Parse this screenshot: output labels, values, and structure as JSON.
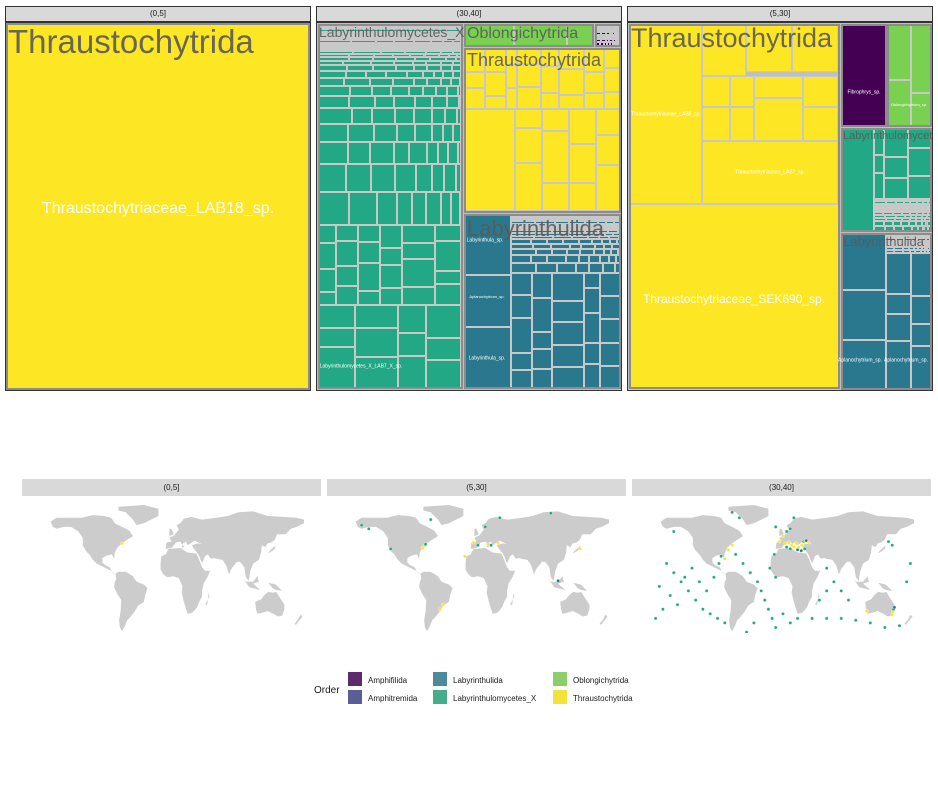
{
  "legend": {
    "title": "Order",
    "items": [
      {
        "label": "Amphifilida",
        "color": "#5d2a6e"
      },
      {
        "label": "Amphitremida",
        "color": "#5b5d96"
      },
      {
        "label": "Labyrinthulida",
        "color": "#4a8a9b"
      },
      {
        "label": "Labyrinthulomycetes_X",
        "color": "#46ad8b"
      },
      {
        "label": "Oblongichytrida",
        "color": "#8ccf6a"
      },
      {
        "label": "Thraustochytrida",
        "color": "#f2e33c"
      }
    ]
  },
  "treemap_colors": {
    "Thraustochytrida": "#fde725",
    "Labyrinthulomycetes_X": "#22a884",
    "Labyrinthulida": "#2a788e",
    "Oblongichytrida": "#7ad151",
    "Amphifilida": "#440154",
    "border": "#c8c8c8"
  },
  "map_colors": {
    "land": "#cccccc",
    "strip": "#d9d9d9"
  },
  "chart_data": [
    {
      "type": "treemap",
      "panel": "(0,5]",
      "groups": [
        {
          "order": "Thraustochytrida",
          "leaves": [
            "Thraustochytriaceae_LAB18_sp."
          ]
        }
      ]
    },
    {
      "type": "treemap",
      "panel": "(30,40]",
      "groups": [
        {
          "order": "Labyrinthulomycetes_X",
          "leaves": [
            "Labyrinthulomycetes_X_LAB7_X_sp."
          ]
        },
        {
          "order": "Oblongichytrida",
          "leaves": []
        },
        {
          "order": "Amphifilida",
          "leaves": []
        },
        {
          "order": "Thraustochytrida",
          "leaves": []
        },
        {
          "order": "Labyrinthulida",
          "leaves": [
            "Labyrinthula_sp.",
            "Aplanochytrium_sp.",
            "Labyrinthula_sp."
          ]
        }
      ]
    },
    {
      "type": "treemap",
      "panel": "(5,30]",
      "groups": [
        {
          "order": "Thraustochytrida",
          "leaves": [
            "Thraustochytriaceae_LAB8_sp.",
            "Thraustochytriaceae_LAB7_sp.",
            "Thraustochytriaceae_SEK690_sp."
          ]
        },
        {
          "order": "Amphifilida",
          "leaves": [
            "Fibrophrys_sp."
          ]
        },
        {
          "order": "Oblongichytrida",
          "leaves": [
            "Oblongichytrium_sp."
          ]
        },
        {
          "order": "Labyrinthulomycetes_X",
          "leaves": []
        },
        {
          "order": "Labyrinthulida",
          "leaves": [
            "Aplanochytrium_sp.",
            "Aplanochytrium_sp."
          ]
        }
      ]
    },
    {
      "type": "map",
      "panel": "(0,5]",
      "points": [
        {
          "lon": -70,
          "lat": 42,
          "order": "Thraustochytrida"
        }
      ]
    },
    {
      "type": "map",
      "panel": "(5,30]",
      "points": [
        {
          "lon": -74,
          "lat": 39,
          "order": "Thraustochytrida"
        },
        {
          "lon": -76,
          "lat": 37,
          "order": "Thraustochytrida"
        },
        {
          "lon": -72,
          "lat": 41,
          "order": "Labyrinthulomycetes_X"
        },
        {
          "lon": -120,
          "lat": 36,
          "order": "Labyrinthulomycetes_X"
        },
        {
          "lon": -150,
          "lat": 58,
          "order": "Labyrinthulomycetes_X"
        },
        {
          "lon": -65,
          "lat": 68,
          "order": "Labyrinthulomycetes_X"
        },
        {
          "lon": -6,
          "lat": 43,
          "order": "Thraustochytrida"
        },
        {
          "lon": 0,
          "lat": 40,
          "order": "Labyrinthulomycetes_X"
        },
        {
          "lon": 14,
          "lat": 41,
          "order": "Thraustochytrida"
        },
        {
          "lon": 18,
          "lat": 40,
          "order": "Labyrinthulomycetes_X"
        },
        {
          "lon": 28,
          "lat": 42,
          "order": "Thraustochytrida"
        },
        {
          "lon": 10,
          "lat": 60,
          "order": "Labyrinthulomycetes_X"
        },
        {
          "lon": 30,
          "lat": 70,
          "order": "Labyrinthulomycetes_X"
        },
        {
          "lon": -18,
          "lat": 28,
          "order": "Thraustochytrida"
        },
        {
          "lon": 100,
          "lat": 75,
          "order": "Labyrinthulomycetes_X"
        },
        {
          "lon": 140,
          "lat": 36,
          "order": "Thraustochytrida"
        },
        {
          "lon": 110,
          "lat": 1,
          "order": "Labyrinthulida"
        },
        {
          "lon": -48,
          "lat": -25,
          "order": "Thraustochytrida"
        },
        {
          "lon": -52,
          "lat": -30,
          "order": "Thraustochytrida"
        },
        {
          "lon": -160,
          "lat": 62,
          "order": "Labyrinthulomycetes_X"
        }
      ]
    },
    {
      "type": "map",
      "panel": "(30,40]",
      "points": [
        {
          "lon": -160,
          "lat": 20,
          "order": "Labyrinthulomycetes_X"
        },
        {
          "lon": -150,
          "lat": 10,
          "order": "Labyrinthulomycetes_X"
        },
        {
          "lon": -140,
          "lat": 0,
          "order": "Labyrinthulomycetes_X"
        },
        {
          "lon": -130,
          "lat": -10,
          "order": "Labyrinthulomycetes_X"
        },
        {
          "lon": -120,
          "lat": -20,
          "order": "Labyrinthulomycetes_X"
        },
        {
          "lon": -110,
          "lat": -30,
          "order": "Labyrinthulomycetes_X"
        },
        {
          "lon": -100,
          "lat": -35,
          "order": "Labyrinthulomycetes_X"
        },
        {
          "lon": -90,
          "lat": -40,
          "order": "Labyrinthulomycetes_X"
        },
        {
          "lon": -80,
          "lat": -45,
          "order": "Labyrinthulomycetes_X"
        },
        {
          "lon": -170,
          "lat": -5,
          "order": "Labyrinthulomycetes_X"
        },
        {
          "lon": -155,
          "lat": -15,
          "order": "Labyrinthulomycetes_X"
        },
        {
          "lon": -145,
          "lat": -25,
          "order": "Labyrinthulomycetes_X"
        },
        {
          "lon": -135,
          "lat": 5,
          "order": "Labyrinthulomycetes_X"
        },
        {
          "lon": -125,
          "lat": 15,
          "order": "Labyrinthulomycetes_X"
        },
        {
          "lon": -115,
          "lat": 0,
          "order": "Labyrinthulomycetes_X"
        },
        {
          "lon": -105,
          "lat": -10,
          "order": "Labyrinthulomycetes_X"
        },
        {
          "lon": -95,
          "lat": 5,
          "order": "Labyrinthulomycetes_X"
        },
        {
          "lon": -88,
          "lat": 20,
          "order": "Labyrinthulomycetes_X"
        },
        {
          "lon": -175,
          "lat": -40,
          "order": "Labyrinthulomycetes_X"
        },
        {
          "lon": -165,
          "lat": -30,
          "order": "Labyrinthulomycetes_X"
        },
        {
          "lon": -70,
          "lat": 40,
          "order": "Thraustochytrida"
        },
        {
          "lon": -75,
          "lat": 35,
          "order": "Thraustochytrida"
        },
        {
          "lon": -65,
          "lat": 30,
          "order": "Labyrinthulomycetes_X"
        },
        {
          "lon": -55,
          "lat": 20,
          "order": "Labyrinthulomycetes_X"
        },
        {
          "lon": -45,
          "lat": 10,
          "order": "Labyrinthulomycetes_X"
        },
        {
          "lon": -35,
          "lat": 0,
          "order": "Labyrinthulomycetes_X"
        },
        {
          "lon": -30,
          "lat": -10,
          "order": "Labyrinthulomycetes_X"
        },
        {
          "lon": -25,
          "lat": -20,
          "order": "Labyrinthulomycetes_X"
        },
        {
          "lon": -20,
          "lat": -30,
          "order": "Labyrinthulomycetes_X"
        },
        {
          "lon": -15,
          "lat": -40,
          "order": "Labyrinthulomycetes_X"
        },
        {
          "lon": -10,
          "lat": -50,
          "order": "Labyrinthulomycetes_X"
        },
        {
          "lon": -40,
          "lat": -45,
          "order": "Labyrinthulomycetes_X"
        },
        {
          "lon": -50,
          "lat": -55,
          "order": "Labyrinthulomycetes_X"
        },
        {
          "lon": 0,
          "lat": -35,
          "order": "Labyrinthulomycetes_X"
        },
        {
          "lon": 10,
          "lat": -45,
          "order": "Labyrinthulomycetes_X"
        },
        {
          "lon": 20,
          "lat": -40,
          "order": "Labyrinthulomycetes_X"
        },
        {
          "lon": 40,
          "lat": -40,
          "order": "Labyrinthulomycetes_X"
        },
        {
          "lon": 60,
          "lat": -40,
          "order": "Labyrinthulomycetes_X"
        },
        {
          "lon": 80,
          "lat": -40,
          "order": "Labyrinthulomycetes_X"
        },
        {
          "lon": 100,
          "lat": -42,
          "order": "Labyrinthulomycetes_X"
        },
        {
          "lon": 120,
          "lat": -45,
          "order": "Labyrinthulomycetes_X"
        },
        {
          "lon": 140,
          "lat": -50,
          "order": "Labyrinthulomycetes_X"
        },
        {
          "lon": 160,
          "lat": -48,
          "order": "Labyrinthulomycetes_X"
        },
        {
          "lon": 50,
          "lat": -20,
          "order": "Labyrinthulomycetes_X"
        },
        {
          "lon": 60,
          "lat": -10,
          "order": "Labyrinthulomycetes_X"
        },
        {
          "lon": 70,
          "lat": 0,
          "order": "Labyrinthulomycetes_X"
        },
        {
          "lon": 80,
          "lat": -10,
          "order": "Labyrinthulomycetes_X"
        },
        {
          "lon": 90,
          "lat": -20,
          "order": "Labyrinthulomycetes_X"
        },
        {
          "lon": 60,
          "lat": 15,
          "order": "Labyrinthulomycetes_X"
        },
        {
          "lon": 170,
          "lat": 0,
          "order": "Labyrinthulomycetes_X"
        },
        {
          "lon": 175,
          "lat": 20,
          "order": "Labyrinthulomycetes_X"
        },
        {
          "lon": -5,
          "lat": 44,
          "order": "Thraustochytrida"
        },
        {
          "lon": 3,
          "lat": 42,
          "order": "Thraustochytrida"
        },
        {
          "lon": 8,
          "lat": 43,
          "order": "Thraustochytrida"
        },
        {
          "lon": 12,
          "lat": 40,
          "order": "Thraustochytrida"
        },
        {
          "lon": 15,
          "lat": 38,
          "order": "Thraustochytrida"
        },
        {
          "lon": 18,
          "lat": 42,
          "order": "Thraustochytrida"
        },
        {
          "lon": 22,
          "lat": 38,
          "order": "Thraustochytrida"
        },
        {
          "lon": 26,
          "lat": 40,
          "order": "Thraustochytrida"
        },
        {
          "lon": 30,
          "lat": 36,
          "order": "Labyrinthulomycetes_X"
        },
        {
          "lon": 5,
          "lat": 38,
          "order": "Labyrinthulomycetes_X"
        },
        {
          "lon": 10,
          "lat": 36,
          "order": "Labyrinthulomycetes_X"
        },
        {
          "lon": 20,
          "lat": 35,
          "order": "Labyrinthulida"
        },
        {
          "lon": 25,
          "lat": 34,
          "order": "Labyrinthulida"
        },
        {
          "lon": 0,
          "lat": 50,
          "order": "Thraustochytrida"
        },
        {
          "lon": 5,
          "lat": 55,
          "order": "Labyrinthulomycetes_X"
        },
        {
          "lon": 10,
          "lat": 58,
          "order": "Labyrinthulomycetes_X"
        },
        {
          "lon": 15,
          "lat": 70,
          "order": "Labyrinthulomycetes_X"
        },
        {
          "lon": -10,
          "lat": 60,
          "order": "Labyrinthulomycetes_X"
        },
        {
          "lon": 32,
          "lat": 45,
          "order": "Labyrinthulida"
        },
        {
          "lon": 35,
          "lat": 43,
          "order": "Thraustochytrida"
        },
        {
          "lon": 28,
          "lat": 44,
          "order": "Oblongichytrida"
        },
        {
          "lon": -12,
          "lat": 30,
          "order": "Labyrinthulomycetes_X"
        },
        {
          "lon": -18,
          "lat": 15,
          "order": "Labyrinthulomycetes_X"
        },
        {
          "lon": -10,
          "lat": 5,
          "order": "Labyrinthulomycetes_X"
        },
        {
          "lon": -60,
          "lat": 70,
          "order": "Labyrinthulomycetes_X"
        },
        {
          "lon": -70,
          "lat": 76,
          "order": "Labyrinthulomycetes_X"
        },
        {
          "lon": -150,
          "lat": 55,
          "order": "Labyrinthulomycetes_X"
        },
        {
          "lon": 150,
          "lat": 40,
          "order": "Labyrinthulomycetes_X"
        },
        {
          "lon": 145,
          "lat": 44,
          "order": "Labyrinthulomycetes_X"
        },
        {
          "lon": 151,
          "lat": -33,
          "order": "Thraustochytrida"
        },
        {
          "lon": 152,
          "lat": -30,
          "order": "Labyrinthulomycetes_X"
        },
        {
          "lon": 153,
          "lat": -28,
          "order": "Labyrinthulida"
        },
        {
          "lon": 150,
          "lat": -36,
          "order": "Thraustochytrida"
        },
        {
          "lon": 115,
          "lat": -32,
          "order": "Thraustochytrida"
        },
        {
          "lon": -64,
          "lat": -64,
          "order": "Labyrinthulomycetes_X"
        },
        {
          "lon": -60,
          "lat": -63,
          "order": "Labyrinthulomycetes_X"
        },
        {
          "lon": -56,
          "lat": -62,
          "order": "Labyrinthulomycetes_X"
        },
        {
          "lon": -70,
          "lat": -66,
          "order": "Labyrinthulomycetes_X"
        },
        {
          "lon": -80,
          "lat": 25,
          "order": "Thraustochytrida"
        },
        {
          "lon": -85,
          "lat": 28,
          "order": "Labyrinthulomycetes_X"
        }
      ]
    }
  ]
}
